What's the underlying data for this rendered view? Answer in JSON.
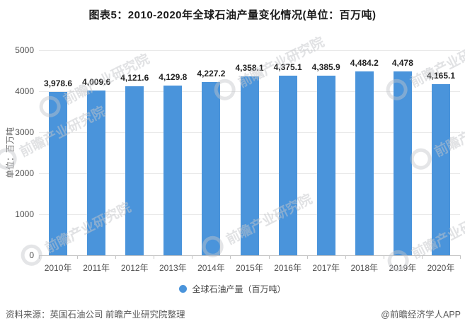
{
  "title": "图表5：2010-2020年全球石油产量变化情况(单位：百万吨)",
  "chart_data": {
    "type": "bar",
    "categories": [
      "2010年",
      "2011年",
      "2012年",
      "2013年",
      "2014年",
      "2015年",
      "2016年",
      "2017年",
      "2018年",
      "2019年",
      "2020年"
    ],
    "values": [
      3978.6,
      4009.6,
      4121.6,
      4129.8,
      4227.2,
      4358.1,
      4375.1,
      4385.9,
      4484.2,
      4478,
      4165.1
    ],
    "value_labels": [
      "3,978.6",
      "4,009.6",
      "4,121.6",
      "4,129.8",
      "4,227.2",
      "4,358.1",
      "4,375.1",
      "4,385.9",
      "4,484.2",
      "4,478",
      "4,165.1"
    ],
    "series_name": "全球石油产量（百万吨）",
    "title": "图表5：2010-2020年全球石油产量变化情况(单位：百万吨)",
    "xlabel": "",
    "ylabel": "单位：百万吨",
    "yticks": [
      0,
      1000,
      2000,
      3000,
      4000,
      5000
    ],
    "ylim": [
      0,
      5000
    ],
    "grid": true,
    "legend_position": "bottom",
    "bar_color": "#4a94db"
  },
  "footer": {
    "source": "资料来源：英国石油公司 前瞻产业研究院整理",
    "credit": "@前瞻经济学人APP"
  },
  "watermark": {
    "text": "前瞻产业研究院"
  }
}
